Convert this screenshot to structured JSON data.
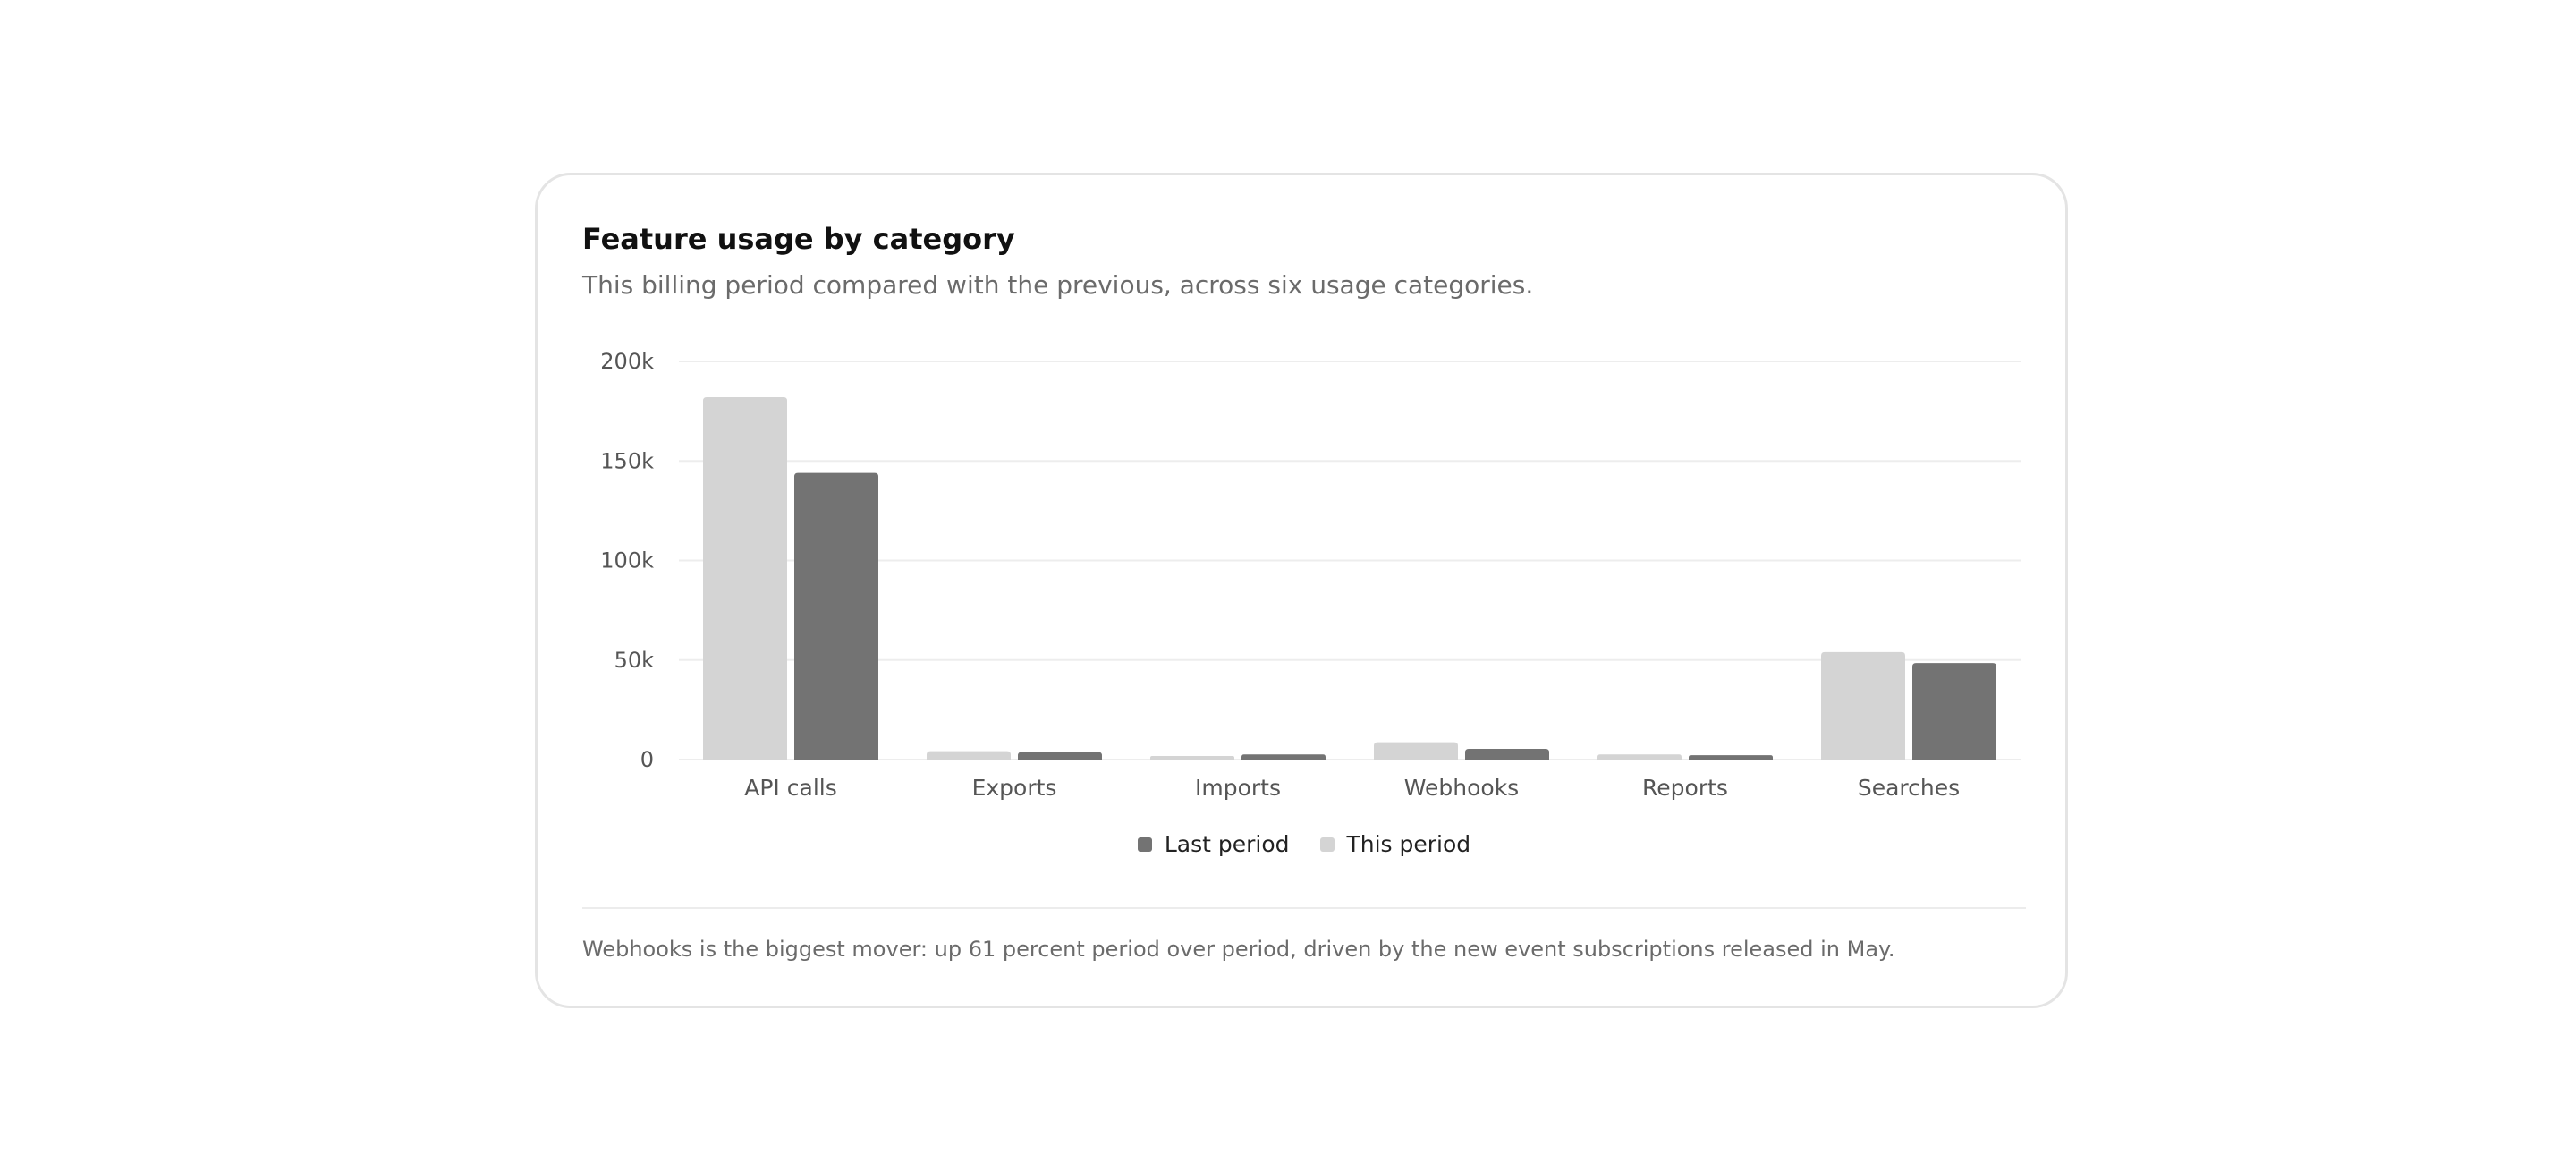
{
  "card": {
    "title": "Feature usage by category",
    "subtitle": "This billing period compared with the previous, across six usage categories.",
    "footnote": "Webhooks is the biggest mover: up 61 percent period over period, driven by the new event subscriptions released in May."
  },
  "chart_data": {
    "type": "bar",
    "categories": [
      "API calls",
      "Exports",
      "Imports",
      "Webhooks",
      "Reports",
      "Searches"
    ],
    "series": [
      {
        "name": "This period",
        "color": "#d4d4d4",
        "values": [
          182000,
          4200,
          1800,
          8700,
          2600,
          54000
        ]
      },
      {
        "name": "Last period",
        "color": "#737373",
        "values": [
          144000,
          3800,
          2600,
          5400,
          2200,
          48500
        ]
      }
    ],
    "ylim": [
      0,
      200000
    ],
    "yticks": [
      0,
      50000,
      100000,
      150000,
      200000
    ],
    "ytick_labels": [
      "0",
      "50k",
      "100k",
      "150k",
      "200k"
    ],
    "grid": true,
    "legend_position": "bottom-center",
    "legend_order": [
      "Last period",
      "This period"
    ]
  },
  "colors": {
    "this_period": "#d4d4d4",
    "last_period": "#737373",
    "gridline": "#ededed"
  }
}
